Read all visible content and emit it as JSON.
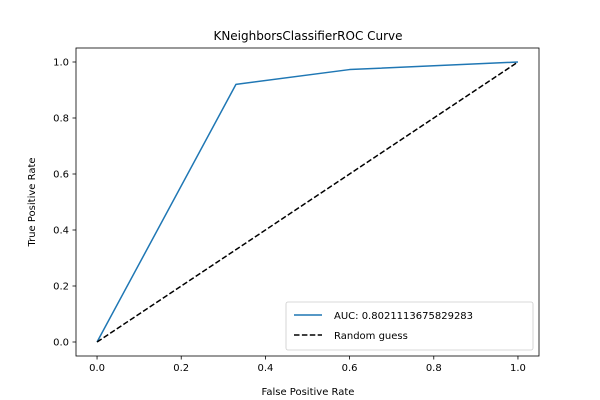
{
  "chart_data": {
    "type": "line",
    "title": "KNeighborsClassifierROC Curve",
    "xlabel": "False Positive Rate",
    "ylabel": "True Positive Rate",
    "xlim": [
      -0.05,
      1.05
    ],
    "ylim": [
      -0.05,
      1.05
    ],
    "xticks": [
      0.0,
      0.2,
      0.4,
      0.6,
      0.8,
      1.0
    ],
    "yticks": [
      0.0,
      0.2,
      0.4,
      0.6,
      0.8,
      1.0
    ],
    "xtick_labels": [
      "0.0",
      "0.2",
      "0.4",
      "0.6",
      "0.8",
      "1.0"
    ],
    "ytick_labels": [
      "0.0",
      "0.2",
      "0.4",
      "0.6",
      "0.8",
      "1.0"
    ],
    "grid": false,
    "legend_position": "lower-right",
    "series": [
      {
        "name": "AUC: 0.8021113675829283",
        "color": "#1f77b4",
        "style": "solid",
        "x": [
          0.0,
          0.33,
          0.6,
          1.0
        ],
        "y": [
          0.0,
          0.92,
          0.973,
          1.0
        ]
      },
      {
        "name": "Random guess",
        "color": "#000000",
        "style": "dashed",
        "x": [
          0.0,
          1.0
        ],
        "y": [
          0.0,
          1.0
        ]
      }
    ]
  }
}
